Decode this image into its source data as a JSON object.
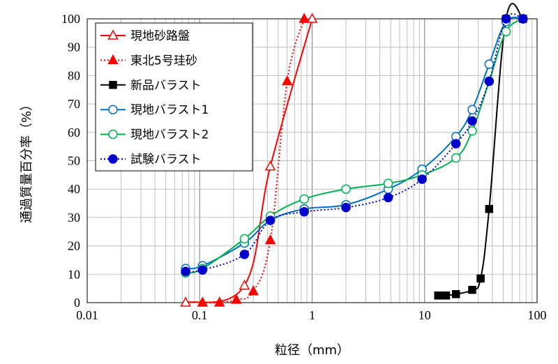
{
  "chart_data": {
    "type": "line",
    "xscale": "log",
    "xlim": [
      0.01,
      100
    ],
    "ylim": [
      0,
      100
    ],
    "xlabel": "粒径（mm）",
    "ylabel": "通過質量百分率（%）",
    "xticks": [
      "0.01",
      "0.1",
      "1",
      "10",
      "100"
    ],
    "yticks": [
      "0",
      "10",
      "20",
      "30",
      "40",
      "50",
      "60",
      "70",
      "80",
      "90",
      "100"
    ],
    "grid": true,
    "legend_position": "top-left",
    "series": [
      {
        "name": "現地砂路盤",
        "color": "#ff0000",
        "line": "solid",
        "marker": "triangle",
        "fill": "open",
        "x": [
          0.075,
          0.25,
          0.425,
          1.0
        ],
        "y": [
          0,
          6,
          48,
          100
        ]
      },
      {
        "name": "東北5号珪砂",
        "color": "#ff0000",
        "line": "dotted",
        "marker": "triangle",
        "fill": "filled",
        "x": [
          0.106,
          0.15,
          0.212,
          0.3,
          0.425,
          0.6,
          0.85
        ],
        "y": [
          0,
          0,
          1,
          4,
          22,
          78,
          100
        ]
      },
      {
        "name": "新品バラスト",
        "color": "#000000",
        "line": "solid",
        "marker": "square",
        "fill": "filled",
        "x": [
          13.2,
          15.5,
          19,
          26.5,
          31.5,
          37.5,
          53,
          75
        ],
        "y": [
          2.5,
          2.5,
          3,
          4.5,
          8.5,
          33,
          100,
          100
        ]
      },
      {
        "name": "現地バラスト1",
        "color": "#0070c0",
        "line": "solid",
        "marker": "circle",
        "fill": "open",
        "x": [
          0.075,
          0.106,
          0.25,
          0.425,
          0.85,
          2,
          4.75,
          9.5,
          19,
          26.5,
          37.5,
          53,
          75
        ],
        "y": [
          12,
          13,
          21,
          29,
          33,
          34.5,
          40,
          47,
          58.5,
          68,
          84,
          99,
          100
        ]
      },
      {
        "name": "現地バラスト2",
        "color": "#00b050",
        "line": "solid",
        "marker": "circle",
        "fill": "open",
        "x": [
          0.075,
          0.106,
          0.25,
          0.425,
          0.85,
          2,
          4.75,
          9.5,
          19,
          26.5,
          37.5,
          53,
          75
        ],
        "y": [
          10.5,
          12,
          22.5,
          30.5,
          36.5,
          40,
          42,
          45,
          51,
          60.5,
          78,
          95.5,
          100
        ]
      },
      {
        "name": "試験バラスト",
        "color": "#0000cc",
        "line": "dotted",
        "marker": "circle",
        "fill": "filled",
        "x": [
          0.075,
          0.106,
          0.25,
          0.425,
          0.85,
          2,
          4.75,
          9.5,
          19,
          26.5,
          37.5,
          53,
          75
        ],
        "y": [
          11,
          11.5,
          17,
          29,
          32,
          33.5,
          37,
          43.5,
          56,
          64,
          78,
          100,
          100
        ]
      }
    ]
  }
}
